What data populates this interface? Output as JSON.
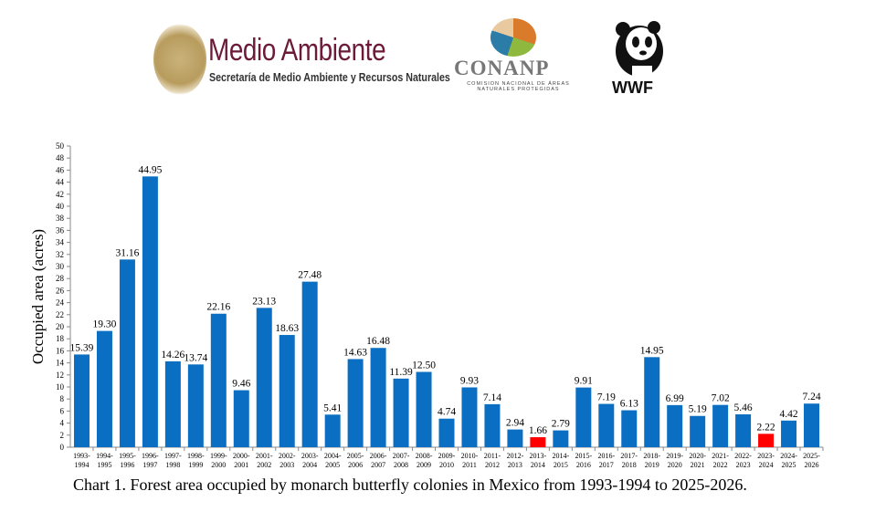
{
  "logos": {
    "semarnat": {
      "title": "Medio Ambiente",
      "subtitle": "Secretaría de Medio Ambiente y Recursos Naturales",
      "seal_text": "ESTADOS UNIDOS MEXICANOS"
    },
    "conanp": {
      "title": "CONANP",
      "subtitle": "COMISION NACIONAL DE ÁREAS NATURALES PROTEGIDAS"
    },
    "wwf": {
      "title": "WWF"
    }
  },
  "caption": "Chart 1. Forest area occupied by monarch butterfly colonies in Mexico from 1993-1994 to 2025-2026.",
  "chart_data": {
    "type": "bar",
    "title": "",
    "xlabel": "",
    "ylabel": "Occupied area (acres)",
    "ylim": [
      0,
      50
    ],
    "ytick_step": 2,
    "grid": false,
    "categories": [
      "1993-1994",
      "1994-1995",
      "1995-1996",
      "1996-1997",
      "1997-1998",
      "1998-1999",
      "1999-2000",
      "2000-2001",
      "2001-2002",
      "2002-2003",
      "2003-2004",
      "2004-2005",
      "2005-2006",
      "2006-2007",
      "2007-2008",
      "2008-2009",
      "2009-2010",
      "2010-2011",
      "2011-2012",
      "2012-2013",
      "2013-2014",
      "2014-2015",
      "2015-2016",
      "2016-2017",
      "2017-2018",
      "2018-2019",
      "2019-2020",
      "2020-2021",
      "2021-2022",
      "2022-2023",
      "2023-2024",
      "2024-2025",
      "2025-2026"
    ],
    "values": [
      15.39,
      19.3,
      31.16,
      44.95,
      14.26,
      13.74,
      22.16,
      9.46,
      23.13,
      18.63,
      27.48,
      5.41,
      14.63,
      16.48,
      11.39,
      12.5,
      4.74,
      9.93,
      7.14,
      2.94,
      1.66,
      2.79,
      9.91,
      7.19,
      6.13,
      14.95,
      6.99,
      5.19,
      7.02,
      5.46,
      2.22,
      4.42,
      7.24
    ],
    "labels": [
      "15.39",
      "19.30",
      "31.16",
      "44.95",
      "14.26",
      "13.74",
      "22.16",
      "9.46",
      "23.13",
      "18.63",
      "27.48",
      "5.41",
      "14.63",
      "16.48",
      "11.39",
      "12.50",
      "4.74",
      "9.93",
      "7.14",
      "2.94",
      "1.66",
      "2.79",
      "9.91",
      "7.19",
      "6.13",
      "14.95",
      "6.99",
      "5.19",
      "7.02",
      "5.46",
      "2.22",
      "4.42",
      "7.24"
    ],
    "colors": {
      "default": "#0a6fc2",
      "highlight": "#ff0000"
    },
    "highlighted": [
      "2013-2014",
      "2023-2024"
    ]
  }
}
